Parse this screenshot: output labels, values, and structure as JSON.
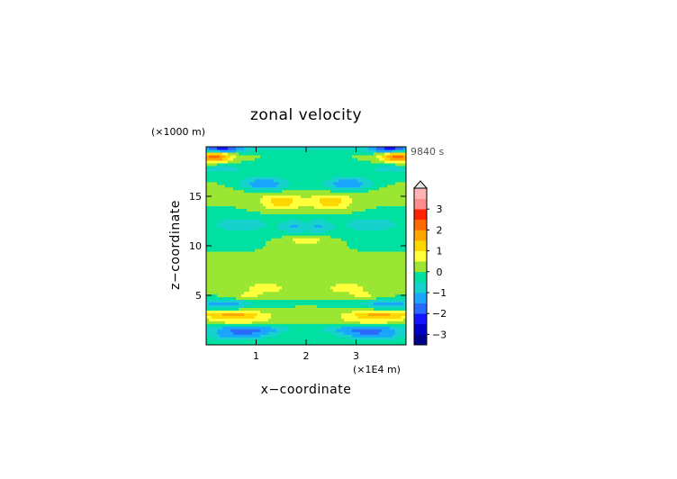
{
  "chart_data": {
    "type": "heatmap",
    "title": "zonal velocity",
    "xlabel": "x−coordinate",
    "ylabel": "z−coordinate",
    "x_unit": "(×1E4 m)",
    "y_unit": "(×1000 m)",
    "time_label": "9840 s",
    "xlim": [
      0,
      4
    ],
    "ylim": [
      0,
      20
    ],
    "x_ticks": [
      1,
      2,
      3
    ],
    "x_tick_labels": [
      "1",
      "2",
      "3"
    ],
    "y_ticks": [
      5,
      10,
      15
    ],
    "y_tick_labels": [
      "5",
      "10",
      "15"
    ],
    "colorbar": {
      "levels": [
        -3.5,
        -3,
        -2.5,
        -2,
        -1.5,
        -1,
        -0.5,
        0,
        0.5,
        1,
        1.5,
        2,
        2.5,
        3,
        3.5
      ],
      "colors": [
        "#00008a",
        "#0000c8",
        "#1414ff",
        "#2a6bff",
        "#1aa6ff",
        "#16d2cc",
        "#00e0a0",
        "#9be632",
        "#ffff3c",
        "#ffd700",
        "#ffa500",
        "#ff6a00",
        "#ff2200",
        "#ff8c8c",
        "#ffb4b4"
      ],
      "tick_values": [
        -3,
        -2,
        -1,
        0,
        1,
        2,
        3
      ],
      "tick_labels": [
        "−3",
        "−2",
        "−1",
        "0",
        "1",
        "2",
        "3"
      ],
      "extend_max": true
    },
    "features": [
      {
        "x": 0.65,
        "z": 0.9,
        "sx": 0.45,
        "sz": 0.28,
        "v": -1.2,
        "mirror": true
      },
      {
        "x": 0.8,
        "z": 1.6,
        "sx": 0.55,
        "sz": 0.35,
        "v": -1.8,
        "mirror": true
      },
      {
        "x": 0.7,
        "z": 2.4,
        "sx": 0.5,
        "sz": 0.4,
        "v": 0.8,
        "mirror": true
      },
      {
        "x": 0.5,
        "z": 3.1,
        "sx": 0.5,
        "sz": 0.3,
        "v": 1.5,
        "mirror": true
      },
      {
        "x": 0.35,
        "z": 4.2,
        "sx": 0.4,
        "sz": 0.35,
        "v": -1.3,
        "mirror": true
      },
      {
        "x": 1.2,
        "z": 5.8,
        "sx": 0.3,
        "sz": 0.35,
        "v": 0.9,
        "mirror": true
      },
      {
        "x": 0.8,
        "z": 5.0,
        "sx": 0.3,
        "sz": 0.3,
        "v": 0.6,
        "mirror": true
      },
      {
        "x": 0.7,
        "z": 7.5,
        "sx": 0.5,
        "sz": 0.5,
        "v": 0.4,
        "mirror": true
      },
      {
        "x": 0.7,
        "z": 12.2,
        "sx": 0.5,
        "sz": 0.6,
        "v": -0.8,
        "mirror": true
      },
      {
        "x": 1.75,
        "z": 12.0,
        "sx": 0.2,
        "sz": 0.5,
        "v": -0.9,
        "mirror": true
      },
      {
        "x": 1.5,
        "z": 14.5,
        "sx": 0.3,
        "sz": 0.6,
        "v": 1.3,
        "mirror": true
      },
      {
        "x": 1.15,
        "z": 16.2,
        "sx": 0.35,
        "sz": 0.55,
        "v": -1.6,
        "mirror": true
      },
      {
        "x": 0.8,
        "z": 15.5,
        "sx": 0.5,
        "sz": 0.5,
        "v": 0.4,
        "mirror": true
      },
      {
        "x": 0.3,
        "z": 17.8,
        "sx": 0.4,
        "sz": 0.4,
        "v": -0.7,
        "mirror": true
      },
      {
        "x": 0.15,
        "z": 19.0,
        "sx": 0.25,
        "sz": 0.4,
        "v": 2.3,
        "mirror": true
      },
      {
        "x": 0.3,
        "z": 19.8,
        "sx": 0.3,
        "sz": 0.25,
        "v": -2.3,
        "mirror": true
      },
      {
        "x": 1.4,
        "z": 19.8,
        "sx": 0.5,
        "sz": 0.2,
        "v": -0.6,
        "mirror": true
      },
      {
        "x": 2.0,
        "z": 10.6,
        "sx": 0.25,
        "sz": 0.35,
        "v": 0.9,
        "mirror": false
      }
    ]
  }
}
